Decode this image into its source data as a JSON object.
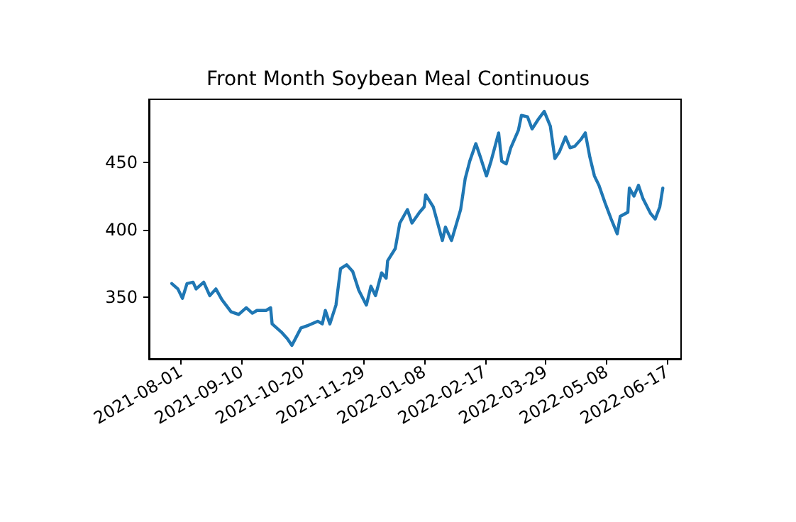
{
  "chart_data": {
    "type": "line",
    "title": "Front Month Soybean Meal Continuous",
    "x": [
      "2021-07-26",
      "2021-07-30",
      "2021-08-02",
      "2021-08-05",
      "2021-08-09",
      "2021-08-11",
      "2021-08-16",
      "2021-08-20",
      "2021-08-24",
      "2021-08-28",
      "2021-09-03",
      "2021-09-08",
      "2021-09-13",
      "2021-09-17",
      "2021-09-20",
      "2021-09-26",
      "2021-09-29",
      "2021-09-30",
      "2021-10-06",
      "2021-10-10",
      "2021-10-13",
      "2021-10-19",
      "2021-10-24",
      "2021-10-30",
      "2021-11-02",
      "2021-11-04",
      "2021-11-07",
      "2021-11-11",
      "2021-11-14",
      "2021-11-18",
      "2021-11-22",
      "2021-11-26",
      "2021-12-01",
      "2021-12-04",
      "2021-12-07",
      "2021-12-11",
      "2021-12-14",
      "2021-12-15",
      "2021-12-20",
      "2021-12-23",
      "2021-12-28",
      "2021-12-31",
      "2022-01-05",
      "2022-01-08",
      "2022-01-09",
      "2022-01-14",
      "2022-01-20",
      "2022-01-22",
      "2022-01-26",
      "2022-02-01",
      "2022-02-04",
      "2022-02-07",
      "2022-02-11",
      "2022-02-14",
      "2022-02-18",
      "2022-02-21",
      "2022-02-26",
      "2022-02-28",
      "2022-03-03",
      "2022-03-06",
      "2022-03-11",
      "2022-03-13",
      "2022-03-17",
      "2022-03-20",
      "2022-03-24",
      "2022-03-28",
      "2022-04-01",
      "2022-04-04",
      "2022-04-07",
      "2022-04-11",
      "2022-04-14",
      "2022-04-17",
      "2022-04-21",
      "2022-04-24",
      "2022-04-27",
      "2022-04-30",
      "2022-05-03",
      "2022-05-07",
      "2022-05-11",
      "2022-05-15",
      "2022-05-17",
      "2022-05-22",
      "2022-05-23",
      "2022-05-26",
      "2022-05-29",
      "2022-06-01",
      "2022-06-06",
      "2022-06-09",
      "2022-06-12",
      "2022-06-14"
    ],
    "series": [
      {
        "color": "#1f77b4",
        "values": [
          360,
          356,
          349,
          360,
          361,
          356,
          361,
          351,
          356,
          348,
          339,
          337,
          342,
          338,
          340,
          340,
          342,
          330,
          324,
          319,
          314,
          327,
          329,
          332,
          330,
          340,
          330,
          344,
          371,
          374,
          369,
          355,
          344,
          358,
          351,
          368,
          364,
          377,
          386,
          405,
          415,
          405,
          413,
          417,
          426,
          417,
          392,
          402,
          392,
          415,
          438,
          451,
          464,
          454,
          440,
          451,
          472,
          451,
          449,
          461,
          474,
          485,
          484,
          475,
          482,
          488,
          477,
          453,
          458,
          469,
          461,
          462,
          467,
          472,
          454,
          440,
          433,
          420,
          408,
          397,
          410,
          413,
          431,
          425,
          433,
          423,
          412,
          408,
          417,
          431
        ]
      }
    ],
    "xlim": [
      "2021-07-11",
      "2022-06-26"
    ],
    "xticks": [
      "2021-08-01",
      "2021-09-10",
      "2021-10-20",
      "2021-11-29",
      "2022-01-08",
      "2022-02-17",
      "2022-03-29",
      "2022-05-08",
      "2022-06-17"
    ],
    "ylim": [
      304,
      497
    ],
    "yticks": [
      350,
      400,
      450
    ],
    "grid": false,
    "marker": "none",
    "line_style": "solid"
  }
}
